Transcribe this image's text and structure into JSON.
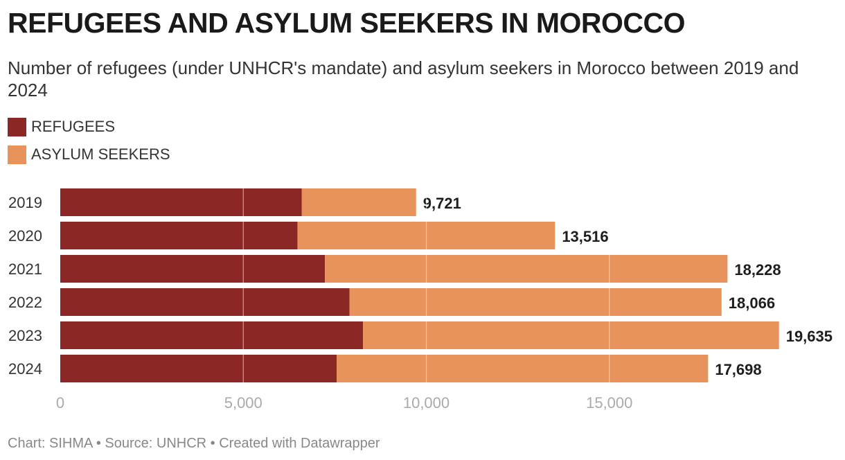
{
  "title": "REFUGEES AND ASYLUM SEEKERS IN MOROCCO",
  "subtitle": "Number of refugees (under UNHCR's mandate) and asylum seekers in Morocco between 2019 and 2024",
  "legend": [
    {
      "label": "REFUGEES",
      "color": "#8b2724"
    },
    {
      "label": "ASYLUM SEEKERS",
      "color": "#e8935c"
    }
  ],
  "footer": {
    "chart_by": "Chart: SIHMA",
    "source": "Source: UNHCR",
    "tool": "Created with Datawrapper",
    "separator": " • "
  },
  "chart_data": {
    "type": "bar",
    "orientation": "horizontal",
    "stacked": true,
    "title": "REFUGEES AND ASYLUM SEEKERS IN MOROCCO",
    "categories": [
      "2019",
      "2020",
      "2021",
      "2022",
      "2023",
      "2024"
    ],
    "series": [
      {
        "name": "REFUGEES",
        "color": "#8b2724",
        "values": [
          6600,
          6480,
          7230,
          7900,
          8270,
          7550
        ]
      },
      {
        "name": "ASYLUM SEEKERS",
        "color": "#e8935c",
        "values": [
          3121,
          7036,
          10998,
          10166,
          11365,
          10148
        ]
      }
    ],
    "totals": [
      9721,
      13516,
      18228,
      18066,
      19635,
      17698
    ],
    "total_labels": [
      "9,721",
      "13,516",
      "18,228",
      "18,066",
      "19,635",
      "17,698"
    ],
    "xlim": [
      0,
      20000
    ],
    "xticks": [
      0,
      5000,
      10000,
      15000
    ],
    "xtick_labels": [
      "0",
      "5,000",
      "10,000",
      "15,000"
    ],
    "grid": true,
    "legend_position": "top-left"
  }
}
